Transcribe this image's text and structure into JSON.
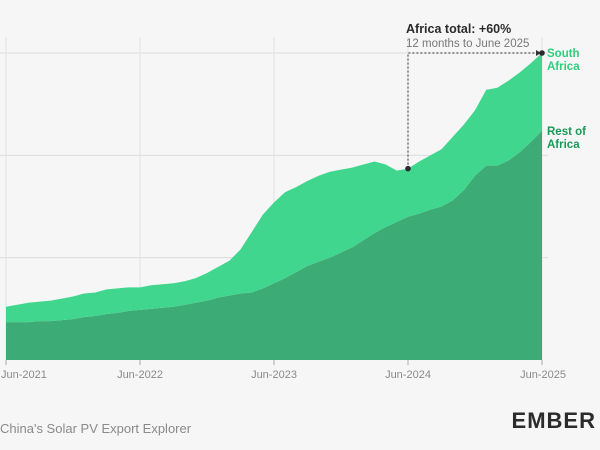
{
  "chart_data": {
    "type": "area",
    "stacked": true,
    "x": [
      "Jun-2021",
      "Jul-2021",
      "Aug-2021",
      "Sep-2021",
      "Oct-2021",
      "Nov-2021",
      "Dec-2021",
      "Jan-2022",
      "Feb-2022",
      "Mar-2022",
      "Apr-2022",
      "May-2022",
      "Jun-2022",
      "Jul-2022",
      "Aug-2022",
      "Sep-2022",
      "Oct-2022",
      "Nov-2022",
      "Dec-2022",
      "Jan-2023",
      "Feb-2023",
      "Mar-2023",
      "Apr-2023",
      "May-2023",
      "Jun-2023",
      "Jul-2023",
      "Aug-2023",
      "Sep-2023",
      "Oct-2023",
      "Nov-2023",
      "Dec-2023",
      "Jan-2024",
      "Feb-2024",
      "Mar-2024",
      "Apr-2024",
      "May-2024",
      "Jun-2024",
      "Jul-2024",
      "Aug-2024",
      "Sep-2024",
      "Oct-2024",
      "Nov-2024",
      "Dec-2024",
      "Jan-2025",
      "Feb-2025",
      "Mar-2025",
      "Apr-2025",
      "May-2025",
      "Jun-2025"
    ],
    "x_tick_labels": [
      "Jun-2021",
      "Jun-2022",
      "Jun-2023",
      "Jun-2024",
      "Jun-2025"
    ],
    "series": [
      {
        "name": "Rest of Africa",
        "color": "#3dab76",
        "values": [
          0.37,
          0.37,
          0.37,
          0.38,
          0.38,
          0.39,
          0.4,
          0.42,
          0.43,
          0.45,
          0.46,
          0.48,
          0.49,
          0.5,
          0.51,
          0.52,
          0.54,
          0.56,
          0.58,
          0.61,
          0.63,
          0.65,
          0.66,
          0.7,
          0.75,
          0.8,
          0.86,
          0.92,
          0.96,
          1.0,
          1.05,
          1.1,
          1.17,
          1.24,
          1.3,
          1.35,
          1.4,
          1.43,
          1.47,
          1.5,
          1.56,
          1.66,
          1.8,
          1.9,
          1.9,
          1.95,
          2.03,
          2.13,
          2.24
        ]
      },
      {
        "name": "South Africa",
        "color": "#41d68e",
        "values": [
          0.15,
          0.17,
          0.19,
          0.19,
          0.2,
          0.21,
          0.22,
          0.23,
          0.23,
          0.24,
          0.24,
          0.23,
          0.22,
          0.23,
          0.23,
          0.23,
          0.23,
          0.24,
          0.27,
          0.3,
          0.34,
          0.43,
          0.59,
          0.72,
          0.79,
          0.84,
          0.83,
          0.83,
          0.84,
          0.84,
          0.81,
          0.78,
          0.74,
          0.7,
          0.61,
          0.5,
          0.47,
          0.51,
          0.53,
          0.56,
          0.62,
          0.64,
          0.64,
          0.74,
          0.76,
          0.78,
          0.78,
          0.77,
          0.76
        ]
      }
    ],
    "ylim": [
      0,
      3
    ],
    "y_tick_labels": [],
    "grid": true,
    "legend": "right (direct labels)",
    "annotation": {
      "title": "Africa total: +60%",
      "subtitle": "12 months to June 2025",
      "from": "Jun-2024",
      "to": "Jun-2025"
    },
    "label_colors": {
      "South Africa": "#2fce7c",
      "Rest of Africa": "#199a58"
    }
  },
  "footer": {
    "source": "China's Solar PV Export Explorer",
    "logo": "EMBER"
  }
}
